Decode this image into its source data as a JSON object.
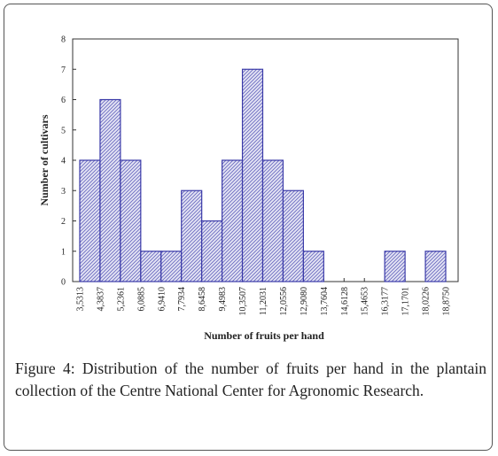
{
  "chart_data": {
    "type": "histogram",
    "bins": [
      3.5313,
      4.3837,
      5.2361,
      6.0885,
      6.941,
      7.7934,
      8.6458,
      9.4983,
      10.3507,
      11.2031,
      12.0556,
      12.908,
      13.7604,
      14.6128,
      15.4653,
      16.3177,
      17.1701,
      18.0226,
      18.875
    ],
    "values": [
      4,
      6,
      4,
      1,
      1,
      3,
      2,
      4,
      7,
      4,
      3,
      1,
      0,
      0,
      0,
      1,
      0,
      1
    ],
    "color": "#3a3aa8",
    "xlim": [
      3.5313,
      18.875
    ],
    "xticks": [
      {
        "value": 3.5313,
        "label": "3,5313"
      },
      {
        "value": 4.3837,
        "label": "4,3837"
      },
      {
        "value": 5.2361,
        "label": "5,2361"
      },
      {
        "value": 6.0885,
        "label": "6,0885"
      },
      {
        "value": 6.941,
        "label": "6,9410"
      },
      {
        "value": 7.7934,
        "label": "7,7934"
      },
      {
        "value": 8.6458,
        "label": "8,6458"
      },
      {
        "value": 9.4983,
        "label": "9,4983"
      },
      {
        "value": 10.3507,
        "label": "10,3507"
      },
      {
        "value": 11.2031,
        "label": "11,2031"
      },
      {
        "value": 12.0556,
        "label": "12,0556"
      },
      {
        "value": 12.908,
        "label": "12,9080"
      },
      {
        "value": 13.7604,
        "label": "13,7604"
      },
      {
        "value": 14.6128,
        "label": "14,6128"
      },
      {
        "value": 15.4653,
        "label": "15,4653"
      },
      {
        "value": 16.3177,
        "label": "16,3177"
      },
      {
        "value": 17.1701,
        "label": "17,1701"
      },
      {
        "value": 18.0226,
        "label": "18,0226"
      },
      {
        "value": 18.875,
        "label": "18,8750"
      }
    ],
    "ylim": [
      0,
      8
    ],
    "yticks": [
      0,
      1,
      2,
      3,
      4,
      5,
      6,
      7,
      8
    ],
    "xlabel": "Number of fruits per hand",
    "ylabel": "Number of cultivars",
    "caption": "Figure 4: Distribution of the number of fruits per hand in the plantain collection of the Centre National Center for Agronomic Research."
  }
}
